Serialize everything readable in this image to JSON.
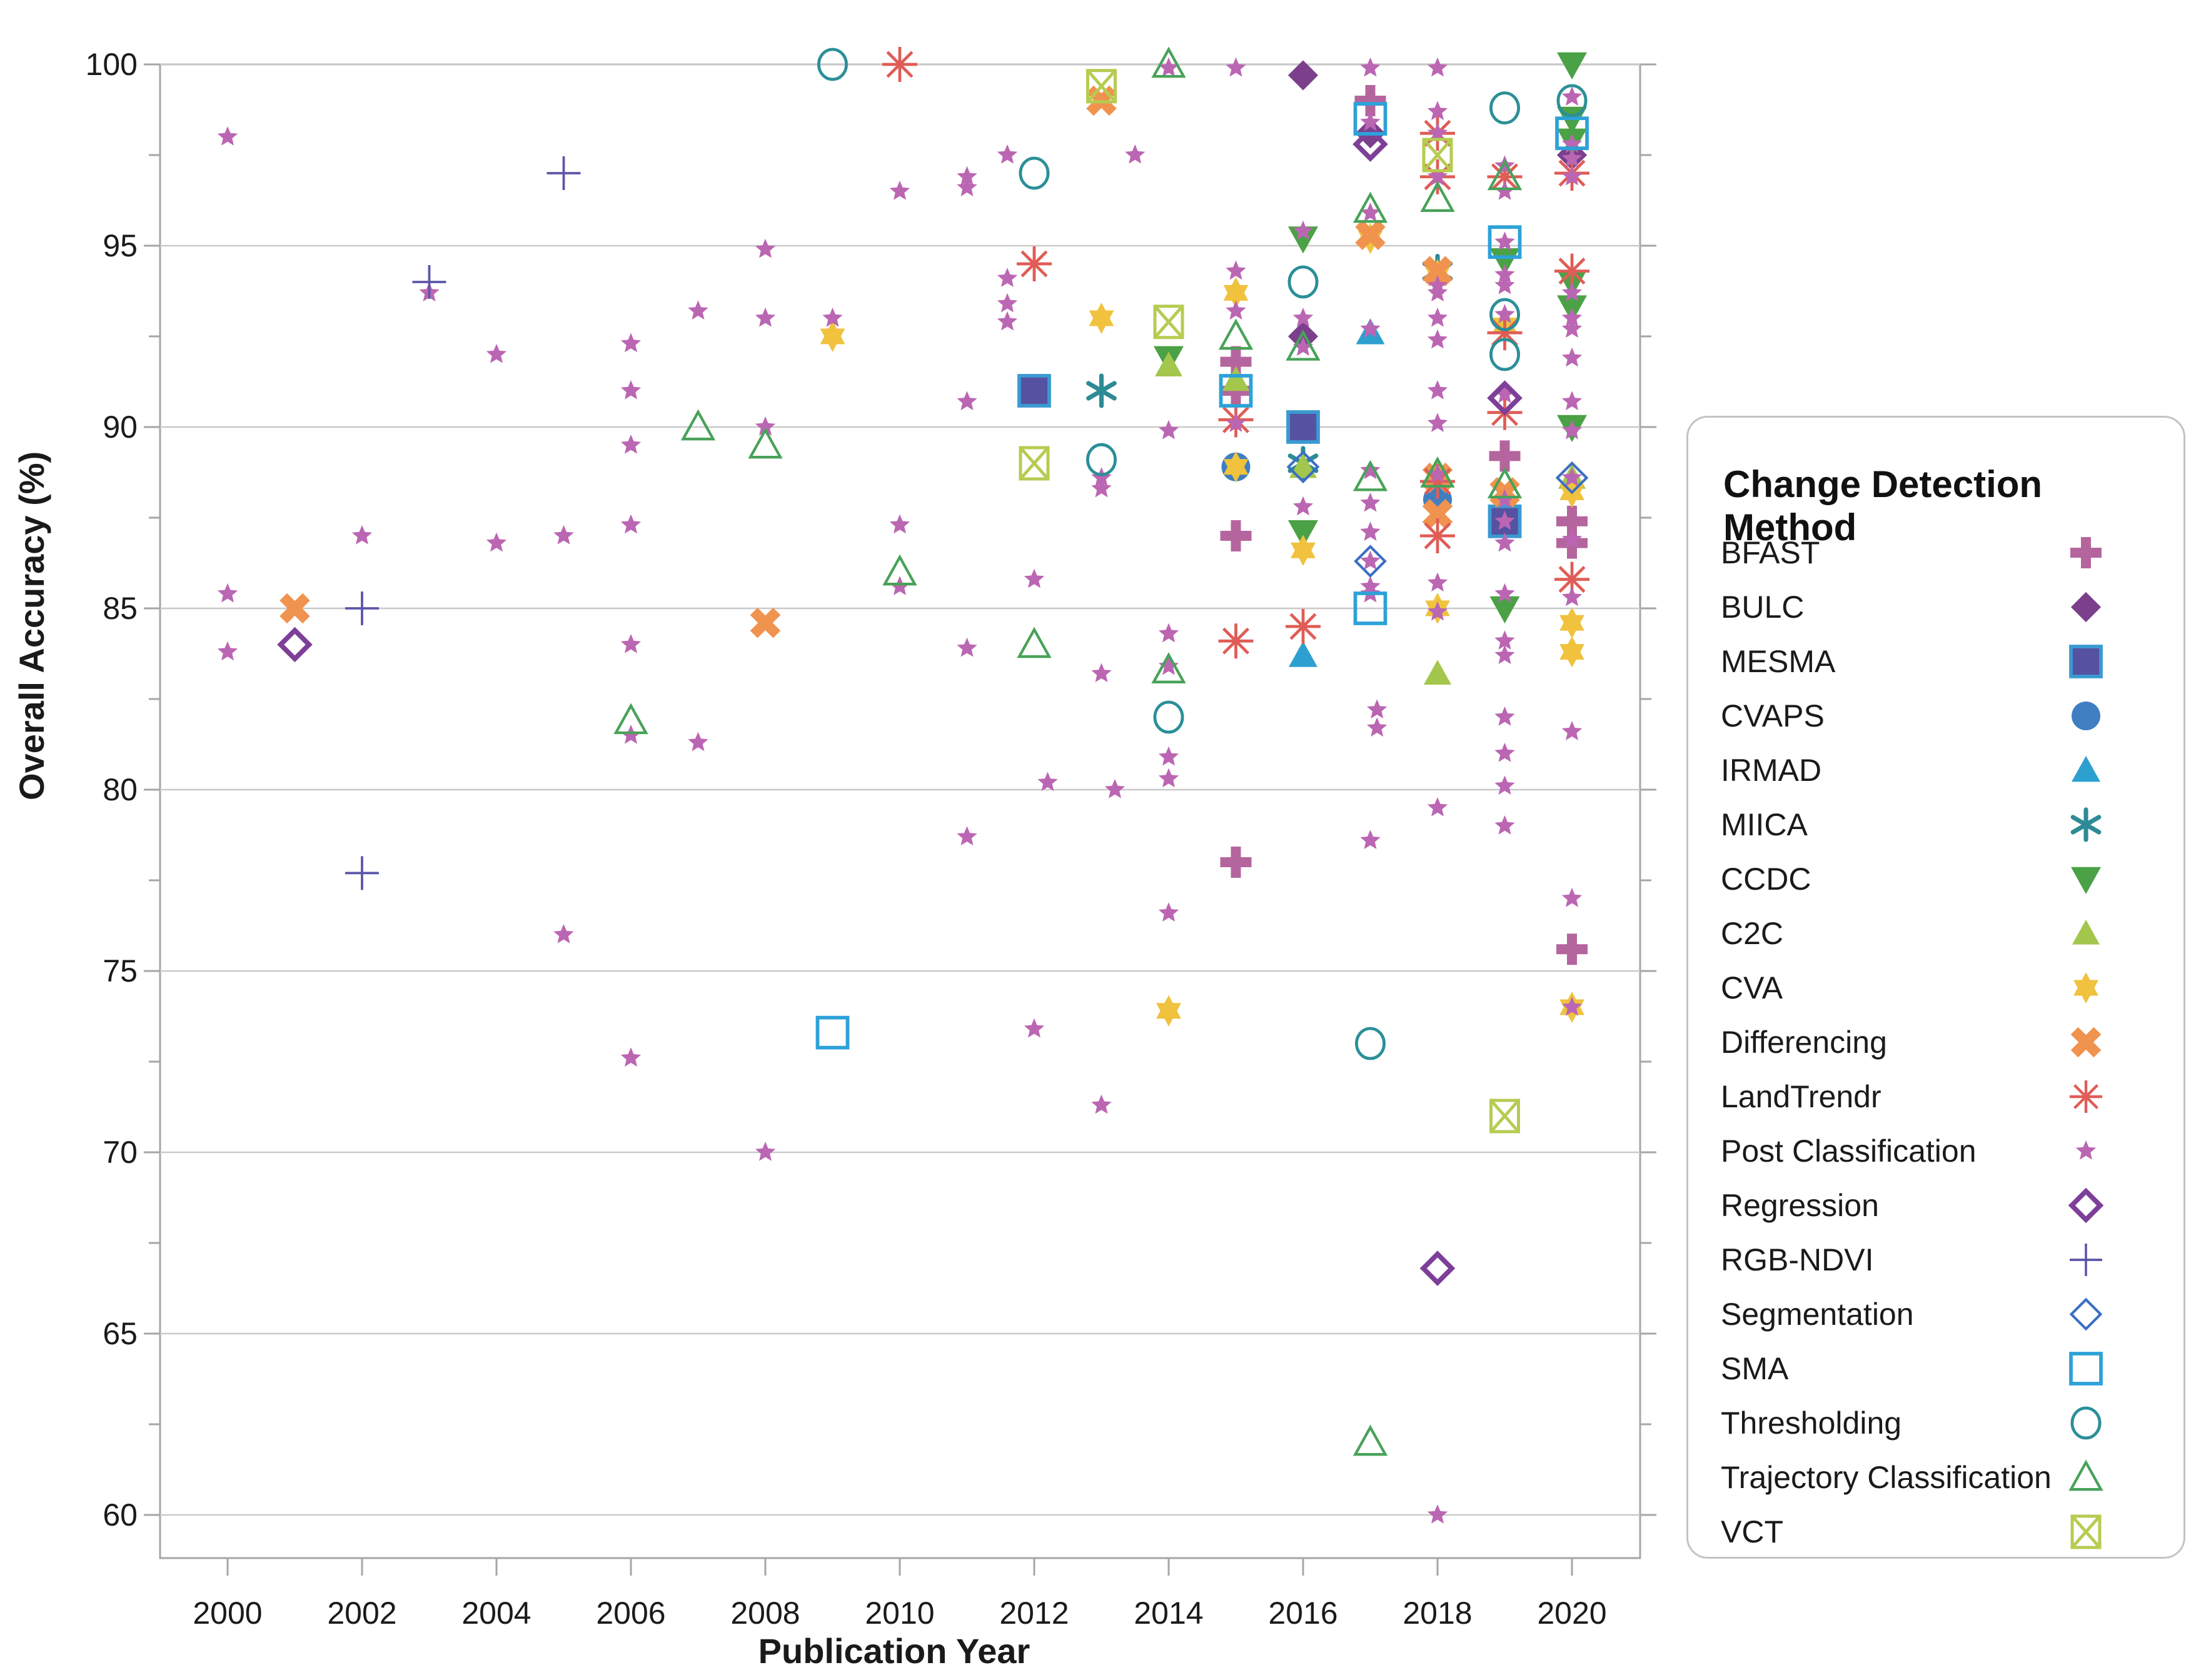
{
  "axes": {
    "y_title": "Overall Accuracy (%)",
    "x_title": "Publication Year",
    "y_ticks": [
      100,
      95,
      90,
      85,
      80,
      75,
      70,
      65,
      60
    ],
    "x_ticks": [
      2000,
      2002,
      2004,
      2006,
      2008,
      2010,
      2012,
      2014,
      2016,
      2018,
      2020
    ]
  },
  "legend": {
    "title": "Change Detection Method"
  },
  "chart_data": {
    "type": "scatter",
    "title": "",
    "xlabel": "Publication Year",
    "ylabel": "Overall Accuracy (%)",
    "xlim": [
      1999,
      2021
    ],
    "ylim": [
      58.5,
      100
    ],
    "grid": "horizontal",
    "legend_position": "right",
    "series": [
      {
        "name": "BFAST",
        "marker": "plus_thick",
        "color": "#b5659e",
        "size": 50,
        "points": [
          [
            2015,
            91.8
          ],
          [
            2015,
            91.0
          ],
          [
            2015,
            87.0
          ],
          [
            2015,
            78.0
          ],
          [
            2017,
            99.0
          ],
          [
            2019,
            89.2
          ],
          [
            2020,
            87.4
          ],
          [
            2020,
            86.8
          ],
          [
            2020,
            75.6
          ]
        ]
      },
      {
        "name": "BULC",
        "marker": "diamond",
        "color": "#7b3f8c",
        "size": 46,
        "points": [
          [
            2016,
            99.7
          ],
          [
            2016,
            92.5
          ],
          [
            2017,
            98.1
          ],
          [
            2020,
            97.5
          ]
        ]
      },
      {
        "name": "MESMA",
        "marker": "square",
        "color": "#5751a2",
        "color2": "#3a9ad2",
        "size": 48,
        "points": [
          [
            2012,
            91.0
          ],
          [
            2016,
            90.0
          ],
          [
            2019,
            87.4
          ]
        ]
      },
      {
        "name": "CVAPS",
        "marker": "circle",
        "color": "#3f7fc1",
        "size": 46,
        "points": [
          [
            2015,
            88.9
          ],
          [
            2018,
            88.0
          ]
        ]
      },
      {
        "name": "IRMAD",
        "marker": "tri_up",
        "color": "#2da0cf",
        "size": 46,
        "points": [
          [
            2017,
            92.6
          ],
          [
            2016,
            83.7
          ]
        ]
      },
      {
        "name": "MIICA",
        "marker": "ast6",
        "color": "#2e8b95",
        "size": 48,
        "points": [
          [
            2013,
            91.0
          ],
          [
            2016,
            89.0
          ],
          [
            2018,
            94.3
          ]
        ]
      },
      {
        "name": "CCDC",
        "marker": "tri_down",
        "color": "#4ba145",
        "size": 48,
        "points": [
          [
            2014,
            91.9
          ],
          [
            2016,
            95.2
          ],
          [
            2016,
            87.1
          ],
          [
            2019,
            94.6
          ],
          [
            2019,
            85.0
          ],
          [
            2020,
            100.0
          ],
          [
            2020,
            98.5
          ],
          [
            2020,
            97.9
          ],
          [
            2020,
            94.0
          ],
          [
            2020,
            93.3
          ],
          [
            2020,
            90.0
          ]
        ]
      },
      {
        "name": "C2C",
        "marker": "tri_up",
        "color": "#a3c64c",
        "size": 44,
        "points": [
          [
            2014,
            91.7
          ],
          [
            2015,
            91.3
          ],
          [
            2016,
            88.9
          ],
          [
            2018,
            88.8
          ],
          [
            2018,
            83.2
          ],
          [
            2020,
            88.6
          ]
        ]
      },
      {
        "name": "CVA",
        "marker": "star6",
        "color": "#f0c23e",
        "size": 50,
        "points": [
          [
            2009,
            92.5
          ],
          [
            2013,
            93.0
          ],
          [
            2014,
            73.9
          ],
          [
            2015,
            93.7
          ],
          [
            2015,
            88.9
          ],
          [
            2016,
            86.6
          ],
          [
            2017,
            95.2
          ],
          [
            2018,
            94.2
          ],
          [
            2018,
            85.0
          ],
          [
            2019,
            92.8
          ],
          [
            2020,
            88.2
          ],
          [
            2020,
            84.6
          ],
          [
            2020,
            83.8
          ],
          [
            2020,
            74.0
          ]
        ]
      },
      {
        "name": "Differencing",
        "marker": "x_thick",
        "color": "#f0934f",
        "size": 52,
        "points": [
          [
            2001,
            85.0
          ],
          [
            2008,
            84.6
          ],
          [
            2013,
            99.0
          ],
          [
            2017,
            95.3
          ],
          [
            2018,
            94.3
          ],
          [
            2018,
            88.6
          ],
          [
            2018,
            87.6
          ],
          [
            2019,
            88.2
          ]
        ]
      },
      {
        "name": "LandTrendr",
        "marker": "ast8",
        "color": "#e05c56",
        "size": 56,
        "points": [
          [
            2010,
            100.0
          ],
          [
            2012,
            94.5
          ],
          [
            2015,
            90.2
          ],
          [
            2015,
            84.1
          ],
          [
            2016,
            84.5
          ],
          [
            2018,
            98.1
          ],
          [
            2018,
            96.9
          ],
          [
            2018,
            88.5
          ],
          [
            2018,
            87.0
          ],
          [
            2019,
            96.9
          ],
          [
            2019,
            92.6
          ],
          [
            2019,
            90.4
          ],
          [
            2020,
            97.0
          ],
          [
            2020,
            94.3
          ],
          [
            2020,
            85.8
          ]
        ]
      },
      {
        "name": "Post Classification",
        "marker": "star5",
        "color": "#bb66b3",
        "size": 34,
        "points": [
          [
            2000,
            98.0
          ],
          [
            2000,
            85.4
          ],
          [
            2000,
            83.8
          ],
          [
            2002,
            87.0
          ],
          [
            2003,
            93.7
          ],
          [
            2004,
            92.0
          ],
          [
            2004,
            86.8
          ],
          [
            2005,
            87.0
          ],
          [
            2005,
            76.0
          ],
          [
            2006,
            92.3
          ],
          [
            2006,
            91.0
          ],
          [
            2006,
            89.5
          ],
          [
            2006,
            87.3
          ],
          [
            2006,
            84.0
          ],
          [
            2006,
            81.5
          ],
          [
            2006,
            72.6
          ],
          [
            2007,
            93.2
          ],
          [
            2007,
            81.3
          ],
          [
            2008,
            94.9
          ],
          [
            2008,
            93.0
          ],
          [
            2008,
            90.0
          ],
          [
            2008,
            70.0
          ],
          [
            2009,
            93.0
          ],
          [
            2010,
            96.5
          ],
          [
            2010,
            87.3
          ],
          [
            2010,
            85.6
          ],
          [
            2011,
            96.9
          ],
          [
            2011,
            96.6
          ],
          [
            2011,
            90.7
          ],
          [
            2011,
            83.9
          ],
          [
            2011,
            78.7
          ],
          [
            2011.6,
            97.5
          ],
          [
            2011.6,
            94.1
          ],
          [
            2011.6,
            93.4
          ],
          [
            2011.6,
            92.9
          ],
          [
            2012,
            85.8
          ],
          [
            2012.2,
            80.2
          ],
          [
            2012,
            73.4
          ],
          [
            2013,
            88.6
          ],
          [
            2013,
            88.3
          ],
          [
            2013,
            83.2
          ],
          [
            2013.2,
            80.0
          ],
          [
            2013,
            71.3
          ],
          [
            2013.5,
            97.5
          ],
          [
            2014,
            99.9
          ],
          [
            2014,
            89.9
          ],
          [
            2014,
            84.3
          ],
          [
            2014,
            83.4
          ],
          [
            2014,
            80.9
          ],
          [
            2014,
            80.3
          ],
          [
            2014,
            76.6
          ],
          [
            2015,
            99.9
          ],
          [
            2015,
            94.3
          ],
          [
            2015,
            93.2
          ],
          [
            2015,
            90.1
          ],
          [
            2016,
            95.4
          ],
          [
            2016,
            93.0
          ],
          [
            2016,
            92.2
          ],
          [
            2016,
            87.8
          ],
          [
            2017,
            99.9
          ],
          [
            2017,
            98.4
          ],
          [
            2017,
            95.9
          ],
          [
            2017,
            92.7
          ],
          [
            2017,
            88.8
          ],
          [
            2017,
            87.9
          ],
          [
            2017,
            87.1
          ],
          [
            2017,
            86.3
          ],
          [
            2017,
            85.6
          ],
          [
            2017,
            85.4
          ],
          [
            2017.1,
            82.2
          ],
          [
            2017.1,
            81.7
          ],
          [
            2017,
            78.6
          ],
          [
            2018,
            99.9
          ],
          [
            2018,
            98.7
          ],
          [
            2018,
            98.1
          ],
          [
            2018,
            96.9
          ],
          [
            2018,
            93.9
          ],
          [
            2018,
            93.7
          ],
          [
            2018,
            93.0
          ],
          [
            2018,
            92.4
          ],
          [
            2018,
            91.0
          ],
          [
            2018,
            90.1
          ],
          [
            2018,
            88.7
          ],
          [
            2018,
            85.7
          ],
          [
            2018,
            84.9
          ],
          [
            2018,
            79.5
          ],
          [
            2018,
            60.0
          ],
          [
            2019,
            97.2
          ],
          [
            2019,
            96.5
          ],
          [
            2019,
            95.1
          ],
          [
            2019,
            94.2
          ],
          [
            2019,
            93.9
          ],
          [
            2019,
            93.1
          ],
          [
            2019,
            90.9
          ],
          [
            2019,
            88.0
          ],
          [
            2019,
            87.4
          ],
          [
            2019,
            86.8
          ],
          [
            2019,
            85.4
          ],
          [
            2019,
            84.1
          ],
          [
            2019,
            83.7
          ],
          [
            2019,
            82.0
          ],
          [
            2019,
            81.0
          ],
          [
            2019,
            80.1
          ],
          [
            2019,
            79.0
          ],
          [
            2020,
            99.1
          ],
          [
            2020,
            97.8
          ],
          [
            2020,
            97.4
          ],
          [
            2020,
            96.9
          ],
          [
            2020,
            93.7
          ],
          [
            2020,
            93.0
          ],
          [
            2020,
            92.7
          ],
          [
            2020,
            91.9
          ],
          [
            2020,
            90.7
          ],
          [
            2020,
            89.9
          ],
          [
            2020,
            88.6
          ],
          [
            2020,
            86.9
          ],
          [
            2020,
            85.3
          ],
          [
            2020,
            81.6
          ],
          [
            2020,
            77.0
          ],
          [
            2020,
            74.0
          ]
        ]
      },
      {
        "name": "Regression",
        "marker": "diamond_open",
        "color": "#7d3f98",
        "size": 46,
        "points": [
          [
            2001,
            84.0
          ],
          [
            2017,
            97.8
          ],
          [
            2018,
            66.8
          ],
          [
            2019,
            90.8
          ]
        ]
      },
      {
        "name": "RGB-NDVI",
        "marker": "plus_thin",
        "color": "#5b55a8",
        "size": 54,
        "points": [
          [
            2002,
            85.0
          ],
          [
            2002,
            77.7
          ],
          [
            2003,
            94.0
          ],
          [
            2005,
            97.0
          ]
        ]
      },
      {
        "name": "Segmentation",
        "marker": "diamond_open2",
        "color": "#3b6fc4",
        "size": 46,
        "points": [
          [
            2016,
            88.9
          ],
          [
            2017,
            86.3
          ],
          [
            2020,
            88.6
          ]
        ]
      },
      {
        "name": "SMA",
        "marker": "square_open",
        "color": "#2da2d8",
        "size": 48,
        "points": [
          [
            2009,
            73.3
          ],
          [
            2015,
            91.0
          ],
          [
            2017,
            98.5
          ],
          [
            2017,
            85.0
          ],
          [
            2019,
            95.1
          ],
          [
            2020,
            98.1
          ]
        ]
      },
      {
        "name": "Thresholding",
        "marker": "circle_open",
        "color": "#2b8f98",
        "size": 48,
        "points": [
          [
            2009,
            100.0
          ],
          [
            2012,
            97.0
          ],
          [
            2013,
            89.1
          ],
          [
            2014,
            82.0
          ],
          [
            2016,
            94.0
          ],
          [
            2017,
            73.0
          ],
          [
            2019,
            98.8
          ],
          [
            2019,
            93.1
          ],
          [
            2019,
            92.0
          ],
          [
            2020,
            99.0
          ]
        ]
      },
      {
        "name": "Trajectory Classification",
        "marker": "tri_open",
        "color": "#48a259",
        "size": 48,
        "points": [
          [
            2006,
            81.9
          ],
          [
            2007,
            90.0
          ],
          [
            2008,
            89.5
          ],
          [
            2010,
            86.0
          ],
          [
            2012,
            84.0
          ],
          [
            2014,
            100.0
          ],
          [
            2014,
            83.3
          ],
          [
            2015,
            92.5
          ],
          [
            2016,
            92.2
          ],
          [
            2017,
            96.0
          ],
          [
            2017,
            88.6
          ],
          [
            2017,
            62.0
          ],
          [
            2018,
            96.3
          ],
          [
            2018,
            88.7
          ],
          [
            2019,
            96.9
          ],
          [
            2019,
            88.4
          ]
        ]
      },
      {
        "name": "VCT",
        "marker": "boxed_x",
        "color": "#b5cc51",
        "size": 50,
        "points": [
          [
            2012,
            89.0
          ],
          [
            2013,
            99.4
          ],
          [
            2014,
            92.9
          ],
          [
            2018,
            97.5
          ],
          [
            2019,
            71.0
          ]
        ]
      }
    ]
  }
}
